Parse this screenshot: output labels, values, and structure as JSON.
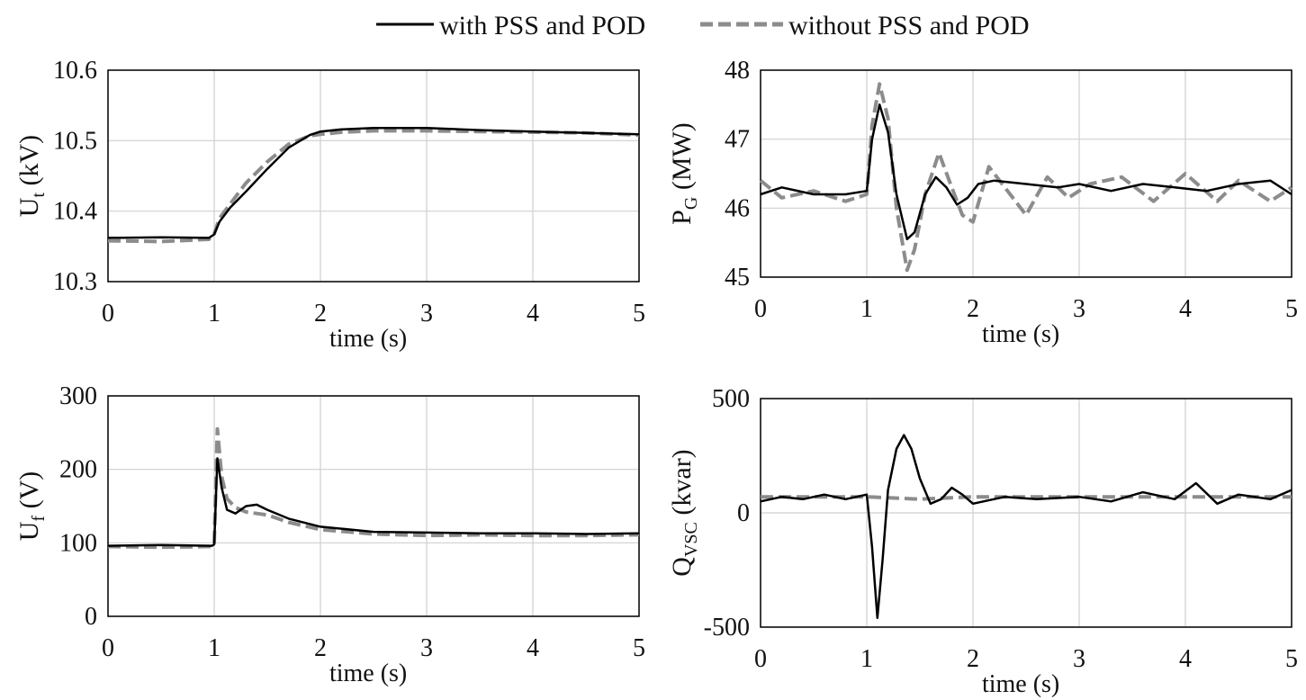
{
  "legend": {
    "items": [
      {
        "label": "with PSS and POD",
        "style": "solid",
        "color": "#000000"
      },
      {
        "label": "without PSS and POD",
        "style": "dashed",
        "color": "#8c8c8c"
      }
    ],
    "placement": "top-center"
  },
  "colors": {
    "with": "#000000",
    "without": "#8c8c8c",
    "grid": "#cfcfcf",
    "frame": "#000000"
  },
  "chart_data": [
    {
      "id": "ut",
      "type": "line",
      "ylabel": "U",
      "ylabel_sub": "t",
      "ylabel_unit": " (kV)",
      "xlabel": "time (s)",
      "xlim": [
        0,
        5
      ],
      "ylim": [
        10.3,
        10.6
      ],
      "xticks": [
        "0",
        "1",
        "2",
        "3",
        "4",
        "5"
      ],
      "yticks": [
        "10.3",
        "10.4",
        "10.5",
        "10.6"
      ],
      "grid": true,
      "series": [
        {
          "name": "with PSS and POD",
          "x": [
            0,
            0.5,
            0.95,
            1.0,
            1.05,
            1.15,
            1.3,
            1.5,
            1.7,
            1.9,
            2.0,
            2.2,
            2.5,
            3.0,
            3.5,
            4.0,
            4.5,
            5.0
          ],
          "y": [
            10.362,
            10.363,
            10.362,
            10.367,
            10.385,
            10.405,
            10.428,
            10.46,
            10.49,
            10.508,
            10.513,
            10.516,
            10.518,
            10.518,
            10.515,
            10.513,
            10.511,
            10.509
          ]
        },
        {
          "name": "without PSS and POD",
          "x": [
            0,
            0.5,
            0.95,
            1.0,
            1.05,
            1.15,
            1.3,
            1.5,
            1.7,
            1.9,
            2.0,
            2.2,
            2.5,
            3.0,
            3.5,
            4.0,
            4.5,
            5.0
          ],
          "y": [
            10.358,
            10.357,
            10.36,
            10.368,
            10.39,
            10.41,
            10.44,
            10.47,
            10.495,
            10.507,
            10.509,
            10.512,
            10.514,
            10.514,
            10.513,
            10.512,
            10.511,
            10.508
          ]
        }
      ]
    },
    {
      "id": "pg",
      "type": "line",
      "ylabel": "P",
      "ylabel_sub": "G",
      "ylabel_unit": " (MW)",
      "xlabel": "time (s)",
      "xlim": [
        0,
        5
      ],
      "ylim": [
        45,
        48
      ],
      "xticks": [
        "0",
        "1",
        "2",
        "3",
        "4",
        "5"
      ],
      "yticks": [
        "45",
        "46",
        "47",
        "48"
      ],
      "grid": true,
      "series": [
        {
          "name": "with PSS and POD",
          "x": [
            0,
            0.2,
            0.5,
            0.8,
            1.0,
            1.05,
            1.12,
            1.2,
            1.28,
            1.38,
            1.45,
            1.55,
            1.65,
            1.75,
            1.85,
            1.95,
            2.05,
            2.2,
            2.5,
            2.8,
            3.0,
            3.3,
            3.6,
            3.9,
            4.2,
            4.5,
            4.8,
            5.0
          ],
          "y": [
            46.2,
            46.3,
            46.2,
            46.2,
            46.25,
            47.0,
            47.5,
            47.1,
            46.2,
            45.55,
            45.65,
            46.2,
            46.45,
            46.3,
            46.05,
            46.15,
            46.35,
            46.4,
            46.35,
            46.3,
            46.35,
            46.25,
            46.35,
            46.3,
            46.25,
            46.35,
            46.4,
            46.2
          ]
        },
        {
          "name": "without PSS and POD",
          "x": [
            0,
            0.2,
            0.5,
            0.8,
            1.0,
            1.05,
            1.12,
            1.2,
            1.28,
            1.38,
            1.45,
            1.55,
            1.68,
            1.8,
            1.9,
            2.0,
            2.15,
            2.3,
            2.5,
            2.7,
            2.9,
            3.1,
            3.4,
            3.7,
            4.0,
            4.3,
            4.5,
            4.8,
            5.0
          ],
          "y": [
            46.4,
            46.15,
            46.25,
            46.1,
            46.2,
            47.2,
            47.8,
            47.3,
            46.0,
            45.1,
            45.4,
            46.2,
            46.8,
            46.3,
            45.9,
            45.8,
            46.6,
            46.3,
            45.9,
            46.45,
            46.15,
            46.35,
            46.45,
            46.1,
            46.5,
            46.1,
            46.4,
            46.1,
            46.3
          ]
        }
      ]
    },
    {
      "id": "uf",
      "type": "line",
      "ylabel": "U",
      "ylabel_sub": "f",
      "ylabel_unit": " (V)",
      "xlabel": "time (s)",
      "xlim": [
        0,
        5
      ],
      "ylim": [
        0,
        300
      ],
      "xticks": [
        "0",
        "1",
        "2",
        "3",
        "4",
        "5"
      ],
      "yticks": [
        "0",
        "100",
        "200",
        "300"
      ],
      "grid": true,
      "series": [
        {
          "name": "with PSS and POD",
          "x": [
            0,
            0.5,
            0.98,
            1.0,
            1.03,
            1.07,
            1.12,
            1.2,
            1.3,
            1.4,
            1.5,
            1.7,
            2.0,
            2.5,
            3.0,
            3.5,
            4.0,
            4.5,
            5.0
          ],
          "y": [
            96,
            97,
            96,
            98,
            215,
            175,
            145,
            140,
            150,
            152,
            145,
            133,
            122,
            115,
            114,
            113,
            113,
            112,
            113
          ]
        },
        {
          "name": "without PSS and POD",
          "x": [
            0,
            0.5,
            0.98,
            1.0,
            1.03,
            1.07,
            1.12,
            1.2,
            1.3,
            1.4,
            1.5,
            1.7,
            2.0,
            2.5,
            3.0,
            3.5,
            4.0,
            4.5,
            5.0
          ],
          "y": [
            95,
            94,
            95,
            100,
            255,
            190,
            160,
            148,
            142,
            140,
            138,
            128,
            118,
            112,
            110,
            111,
            110,
            110,
            111
          ]
        }
      ]
    },
    {
      "id": "qvsc",
      "type": "line",
      "ylabel": "Q",
      "ylabel_sub": "VSC",
      "ylabel_unit": " (kvar)",
      "xlabel": "time (s)",
      "xlim": [
        0,
        5
      ],
      "ylim": [
        -500,
        500
      ],
      "xticks": [
        "0",
        "1",
        "2",
        "3",
        "4",
        "5"
      ],
      "yticks": [
        "-500",
        "0",
        "500"
      ],
      "grid": true,
      "series": [
        {
          "name": "with PSS and POD",
          "x": [
            0,
            0.2,
            0.4,
            0.6,
            0.8,
            1.0,
            1.05,
            1.1,
            1.15,
            1.2,
            1.28,
            1.35,
            1.42,
            1.5,
            1.6,
            1.7,
            1.8,
            1.9,
            2.0,
            2.3,
            2.6,
            3.0,
            3.3,
            3.6,
            3.9,
            4.1,
            4.3,
            4.5,
            4.8,
            5.0
          ],
          "y": [
            50,
            70,
            60,
            80,
            60,
            80,
            -150,
            -460,
            -200,
            100,
            280,
            340,
            280,
            150,
            40,
            60,
            110,
            80,
            40,
            70,
            60,
            70,
            50,
            90,
            60,
            130,
            40,
            80,
            60,
            100
          ]
        },
        {
          "name": "without PSS and POD",
          "x": [
            0,
            0.5,
            1.0,
            1.5,
            2.0,
            2.5,
            3.0,
            3.5,
            4.0,
            4.5,
            5.0
          ],
          "y": [
            70,
            70,
            70,
            60,
            70,
            70,
            70,
            70,
            70,
            70,
            70
          ]
        }
      ]
    }
  ]
}
